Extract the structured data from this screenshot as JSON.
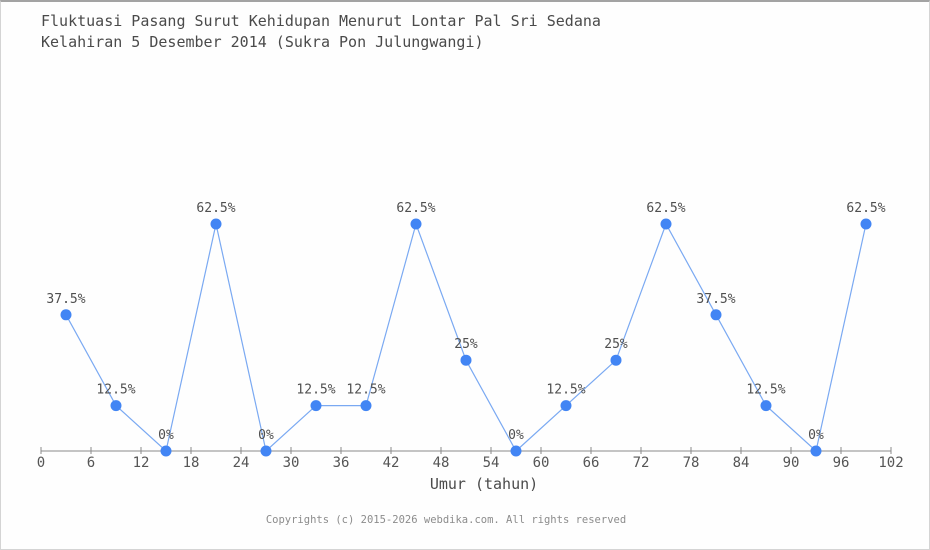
{
  "page": {
    "title_line1": "Fluktuasi Pasang Surut Kehidupan Menurut Lontar Pal Sri Sedana",
    "title_line2": "Kelahiran 5 Desember 2014 (Sukra Pon Julungwangi)",
    "footer": "Copyrights (c) 2015-2026 webdika.com. All rights reserved"
  },
  "chart_data": {
    "type": "line",
    "title": "Fluktuasi Pasang Surut Kehidupan Menurut Lontar Pal Sri Sedana Kelahiran 5 Desember 2014 (Sukra Pon Julungwangi)",
    "xlabel": "Umur (tahun)",
    "ylabel": "",
    "x": [
      3,
      9,
      15,
      21,
      27,
      33,
      39,
      45,
      51,
      57,
      63,
      69,
      75,
      81,
      87,
      93,
      99
    ],
    "values": [
      37.5,
      12.5,
      0,
      62.5,
      0,
      12.5,
      12.5,
      62.5,
      25,
      0,
      12.5,
      25,
      62.5,
      37.5,
      12.5,
      0,
      62.5
    ],
    "point_labels": [
      "37.5%",
      "12.5%",
      "0%",
      "62.5%",
      "0%",
      "12.5%",
      "12.5%",
      "62.5%",
      "25%",
      "0%",
      "12.5%",
      "25%",
      "62.5%",
      "37.5%",
      "12.5%",
      "0%",
      "62.5%"
    ],
    "x_ticks": [
      0,
      6,
      12,
      18,
      24,
      30,
      36,
      42,
      48,
      54,
      60,
      66,
      72,
      78,
      84,
      90,
      96,
      102
    ],
    "xlim": [
      0,
      102
    ],
    "ylim": [
      0,
      70
    ],
    "grid": false,
    "legend": null,
    "colors": {
      "line": "#7aa9f2",
      "marker": "#4285f4",
      "axis": "#8a8a8a",
      "tick_label": "#555555",
      "point_label": "#4f4f4f",
      "xlabel": "#4a4a4a"
    }
  }
}
